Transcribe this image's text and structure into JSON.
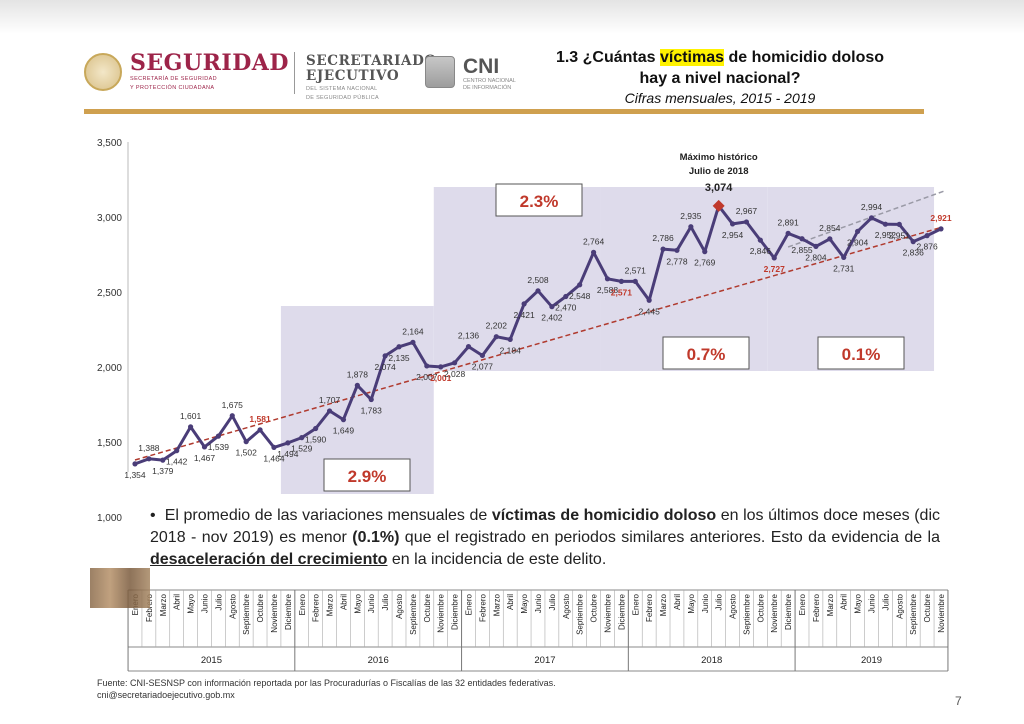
{
  "header": {
    "seguridad_title": "SEGURIDAD",
    "seguridad_sub1": "SECRETARÍA DE SEGURIDAD",
    "seguridad_sub2": "Y PROTECCIÓN CIUDADANA",
    "secretariado_line1": "SECRETARIADO",
    "secretariado_line2": "EJECUTIVO",
    "secretariado_sub1": "DEL SISTEMA NACIONAL",
    "secretariado_sub2": "DE SEGURIDAD PÚBLICA",
    "cni_title": "CNI",
    "cni_sub1": "CENTRO NACIONAL",
    "cni_sub2": "DE INFORMACIÓN",
    "title_prefix": "1.3 ¿Cuántas ",
    "title_highlight": "víctimas",
    "title_suffix": " de homicidio doloso",
    "title_line2": "hay a nivel nacional?",
    "subtitle": "Cifras mensuales, 2015 - 2019"
  },
  "chart_data": {
    "type": "line",
    "ylim": [
      1000,
      3500
    ],
    "yticks": [
      "1,000",
      "1,500",
      "2,000",
      "2,500",
      "3,000",
      "3,500"
    ],
    "ytick_values": [
      1000,
      1500,
      2000,
      2500,
      3000,
      3500
    ],
    "months": [
      "Enero",
      "Febrero",
      "Marzo",
      "Abril",
      "Mayo",
      "Junio",
      "Julio",
      "Agosto",
      "Septiembre",
      "Octubre",
      "Noviembre",
      "Diciembre",
      "Enero",
      "Febrero",
      "Marzo",
      "Abril",
      "Mayo",
      "Junio",
      "Julio",
      "Agosto",
      "Septiembre",
      "Octubre",
      "Noviembre",
      "Diciembre",
      "Enero",
      "Febrero",
      "Marzo",
      "Abril",
      "Mayo",
      "Junio",
      "Julio",
      "Agosto",
      "Septiembre",
      "Octubre",
      "Noviembre",
      "Diciembre",
      "Enero",
      "Febrero",
      "Marzo",
      "Abril",
      "Mayo",
      "Junio",
      "Julio",
      "Agosto",
      "Septiembre",
      "Octubre",
      "Noviembre",
      "Diciembre",
      "Enero",
      "Febrero",
      "Marzo",
      "Abril",
      "Mayo",
      "Junio",
      "Julio",
      "Agosto",
      "Septiembre",
      "Octubre",
      "Noviembre"
    ],
    "years": [
      "2015",
      "2016",
      "2017",
      "2018",
      "2019"
    ],
    "values": [
      1354,
      1388,
      1379,
      1442,
      1601,
      1467,
      1539,
      1675,
      1502,
      1581,
      1464,
      1494,
      1529,
      1590,
      1707,
      1649,
      1878,
      1783,
      2074,
      2135,
      2164,
      2007,
      2001,
      2028,
      2136,
      2077,
      2202,
      2184,
      2421,
      2508,
      2402,
      2470,
      2548,
      2764,
      2588,
      2571,
      2571,
      2445,
      2786,
      2778,
      2935,
      2769,
      3074,
      2954,
      2967,
      2846,
      2727,
      2891,
      2855,
      2804,
      2854,
      2731,
      2904,
      2994,
      2952,
      2951,
      2836,
      2876,
      2921
    ],
    "value_labels": [
      "1,354",
      "1,388",
      "1,379",
      "1,442",
      "1,601",
      "1,467",
      "1,539",
      "1,675",
      "1,502",
      "1,581",
      "1,464",
      "1,494",
      "1,529",
      "1,590",
      "1,707",
      "1,649",
      "1,878",
      "1,783",
      "2,074",
      "2,135",
      "2,164",
      "2,007",
      "2,001",
      "2,028",
      "2,136",
      "2,077",
      "2,202",
      "2,184",
      "2,421",
      "2,508",
      "2,402",
      "2,470",
      "2,548",
      "2,764",
      "2,588",
      "2,571",
      "2,571",
      "2,445",
      "2,786",
      "2,778",
      "2,935",
      "2,769",
      "3,074",
      "2,954",
      "2,967",
      "2,846",
      "2,727",
      "2,891",
      "2,855",
      "2,804",
      "2,854",
      "2,731",
      "2,904",
      "2,994",
      "2,952",
      "2,951",
      "2,836",
      "2,876",
      "2,921"
    ],
    "highlighted_values": [
      "1,581",
      "2,001",
      "2,571",
      "2,727",
      "2,921"
    ],
    "peak": {
      "label_line1": "Máximo histórico",
      "label_line2": "Julio de 2018",
      "value": "3,074"
    },
    "growth_periods": [
      {
        "label": "2.9%",
        "start": "Diciembre 2015",
        "end": "Noviembre 2016"
      },
      {
        "label": "2.3%",
        "start": "Diciembre 2016",
        "end": "Noviembre 2017"
      },
      {
        "label": "0.7%",
        "start": "Diciembre 2017",
        "end": "Noviembre 2018"
      },
      {
        "label": "0.1%",
        "start": "Diciembre 2018",
        "end": "Noviembre 2019"
      }
    ],
    "trendlines": [
      "linear trend 2015-2019 (red dashed)",
      "trend 2019 (grey dashed)"
    ],
    "colors": {
      "line": "#4a3d78",
      "trend": "#b03a2e",
      "trend2": "#9a9aa6",
      "highlight": "#c0392b",
      "shade": "#dedbeb",
      "peak_marker": "#c0392b"
    }
  },
  "bullet": {
    "p1": "El promedio de las variaciones mensuales de ",
    "b1": "víctimas de homicidio doloso",
    "p2": " en los últimos doce meses (dic 2018 - nov 2019) es menor ",
    "b2": "(0.1%)",
    "p3": " que el registrado en periodos similares anteriores. Esto da evidencia de la ",
    "b3": "desaceleración del crecimiento",
    "p4": " en la incidencia de este delito."
  },
  "footer": {
    "line1": "Fuente: CNI-SESNSP con información reportada por las Procuradurías o Fiscalías de las 32 entidades federativas.",
    "line2": "cni@secretariadoejecutivo.gob.mx"
  },
  "page_number": "7"
}
